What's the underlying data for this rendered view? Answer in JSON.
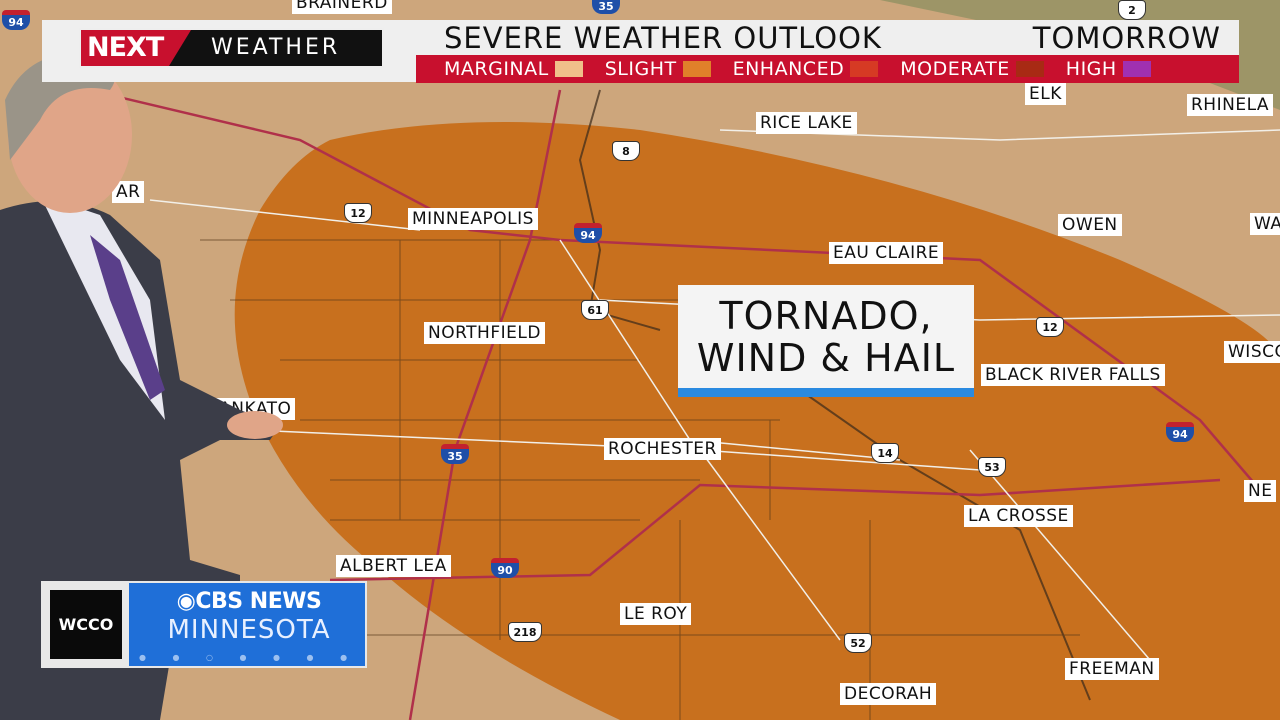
{
  "header": {
    "brand_next": "NEXT",
    "brand_weather": "WEATHER",
    "title": "SEVERE WEATHER OUTLOOK",
    "timeframe": "TOMORROW"
  },
  "legend": [
    {
      "label": "MARGINAL",
      "color": "#f0c08a"
    },
    {
      "label": "SLIGHT",
      "color": "#e0802a"
    },
    {
      "label": "ENHANCED",
      "color": "#d63a24"
    },
    {
      "label": "MODERATE",
      "color": "#a82a14"
    },
    {
      "label": "HIGH",
      "color": "#a030b0"
    }
  ],
  "callout": {
    "line1": "TORNADO,",
    "line2": "WIND & HAIL"
  },
  "risk_area": {
    "category": "SLIGHT",
    "color": "#c8701e"
  },
  "cities": [
    "BRAINERD",
    "RICE LAKE",
    "ELK",
    "RHINELA",
    "AR",
    "MINNEAPOLIS",
    "EAU CLAIRE",
    "OWEN",
    "WA",
    "NORTHFIELD",
    "BLACK RIVER FALLS",
    "WISCO",
    "MANKATO",
    "ROCHESTER",
    "LA CROSSE",
    "NE",
    "ALBERT LEA",
    "LE ROY",
    "FREEMAN",
    "DECORAH"
  ],
  "highways": [
    "94",
    "35",
    "2",
    "12",
    "94",
    "8",
    "61",
    "12",
    "94",
    "35",
    "14",
    "53",
    "90",
    "218",
    "52",
    "12"
  ],
  "bug": {
    "station": "WCCO",
    "network": "CBS NEWS",
    "region": "MINNESOTA"
  }
}
